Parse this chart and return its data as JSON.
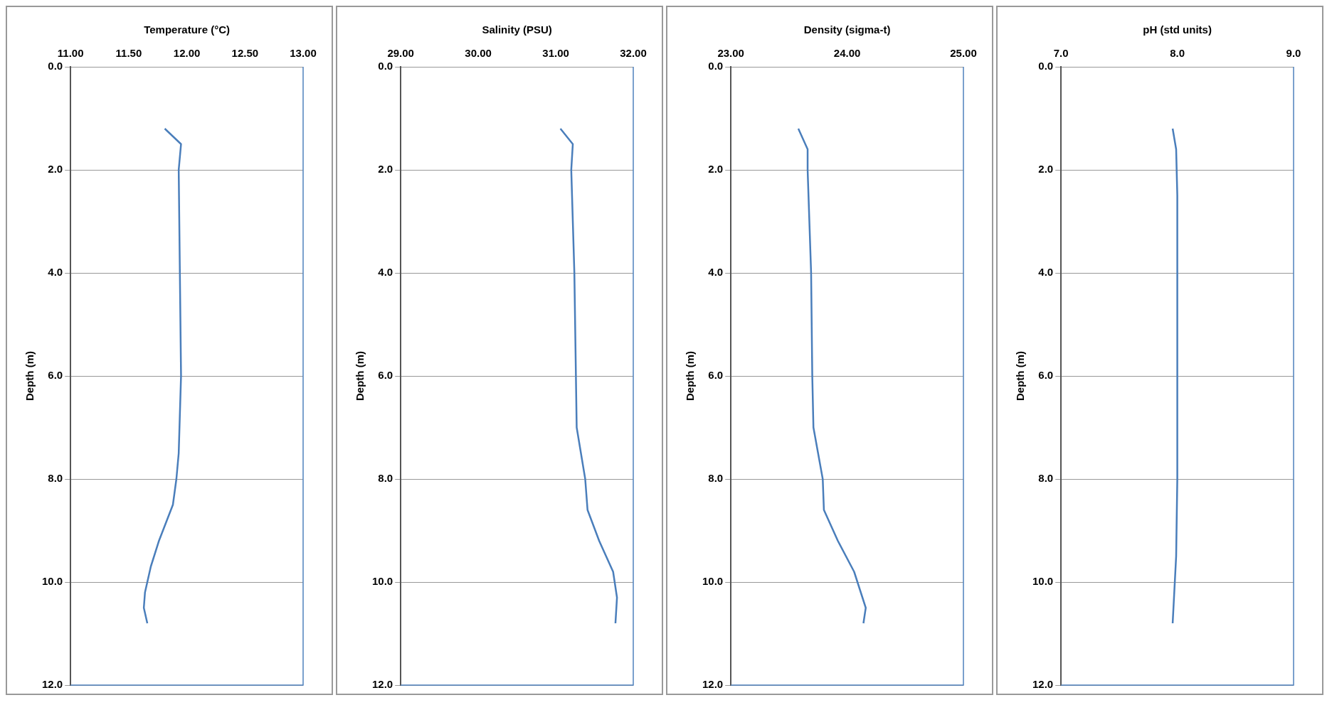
{
  "chart_data": [
    {
      "type": "line",
      "xlabel": "Temperature (°C)",
      "ylabel": "Depth (m)",
      "xlim": [
        11,
        13
      ],
      "ylim": [
        12,
        0
      ],
      "xticks": [
        {
          "value": 11,
          "label": "11.00"
        },
        {
          "value": 11.5,
          "label": "11.50"
        },
        {
          "value": 12,
          "label": "12.00"
        },
        {
          "value": 12.5,
          "label": "12.50"
        },
        {
          "value": 13,
          "label": "13.00"
        }
      ],
      "yticks": [
        {
          "value": 0,
          "label": "0.0"
        },
        {
          "value": 2,
          "label": "2.0"
        },
        {
          "value": 4,
          "label": "4.0"
        },
        {
          "value": 6,
          "label": "6.0"
        },
        {
          "value": 8,
          "label": "8.0"
        },
        {
          "value": 10,
          "label": "10.0"
        },
        {
          "value": 12,
          "label": "12.0"
        }
      ],
      "grid": "y",
      "marker": "none",
      "color": "#4a7ebb",
      "x": [
        11.81,
        11.95,
        11.93,
        11.94,
        11.95,
        11.93,
        11.91,
        11.88,
        11.76,
        11.69,
        11.64,
        11.63,
        11.66
      ],
      "values": [
        1.2,
        1.5,
        2,
        4,
        6,
        7.5,
        8,
        8.5,
        9.2,
        9.7,
        10.2,
        10.5,
        10.8
      ]
    },
    {
      "type": "line",
      "xlabel": "Salinity (PSU)",
      "ylabel": "Depth (m)",
      "xlim": [
        29,
        32
      ],
      "ylim": [
        12,
        0
      ],
      "xticks": [
        {
          "value": 29,
          "label": "29.00"
        },
        {
          "value": 30,
          "label": "30.00"
        },
        {
          "value": 31,
          "label": "31.00"
        },
        {
          "value": 32,
          "label": "32.00"
        }
      ],
      "yticks": [
        {
          "value": 0,
          "label": "0.0"
        },
        {
          "value": 2,
          "label": "2.0"
        },
        {
          "value": 4,
          "label": "4.0"
        },
        {
          "value": 6,
          "label": "6.0"
        },
        {
          "value": 8,
          "label": "8.0"
        },
        {
          "value": 10,
          "label": "10.0"
        },
        {
          "value": 12,
          "label": "12.0"
        }
      ],
      "grid": "y",
      "marker": "none",
      "color": "#4a7ebb",
      "x": [
        31.06,
        31.22,
        31.2,
        31.24,
        31.26,
        31.27,
        31.38,
        31.41,
        31.56,
        31.74,
        31.79,
        31.77
      ],
      "values": [
        1.2,
        1.5,
        2,
        4,
        6,
        7,
        8,
        8.6,
        9.2,
        9.8,
        10.3,
        10.8
      ]
    },
    {
      "type": "line",
      "xlabel": "Density (sigma-t)",
      "ylabel": "Depth (m)",
      "xlim": [
        23,
        25
      ],
      "ylim": [
        12,
        0
      ],
      "xticks": [
        {
          "value": 23,
          "label": "23.00"
        },
        {
          "value": 24,
          "label": "24.00"
        },
        {
          "value": 25,
          "label": "25.00"
        }
      ],
      "yticks": [
        {
          "value": 0,
          "label": "0.0"
        },
        {
          "value": 2,
          "label": "2.0"
        },
        {
          "value": 4,
          "label": "4.0"
        },
        {
          "value": 6,
          "label": "6.0"
        },
        {
          "value": 8,
          "label": "8.0"
        },
        {
          "value": 10,
          "label": "10.0"
        },
        {
          "value": 12,
          "label": "12.0"
        }
      ],
      "grid": "y",
      "marker": "none",
      "color": "#4a7ebb",
      "x": [
        23.58,
        23.66,
        23.66,
        23.69,
        23.7,
        23.71,
        23.79,
        23.8,
        23.92,
        24.06,
        24.16,
        24.14
      ],
      "values": [
        1.2,
        1.6,
        2,
        4,
        6,
        7,
        8,
        8.6,
        9.2,
        9.8,
        10.5,
        10.8
      ]
    },
    {
      "type": "line",
      "xlabel": "pH (std units)",
      "ylabel": "Depth (m)",
      "xlim": [
        7,
        9
      ],
      "ylim": [
        12,
        0
      ],
      "xticks": [
        {
          "value": 7,
          "label": "7.0"
        },
        {
          "value": 8,
          "label": "8.0"
        },
        {
          "value": 9,
          "label": "9.0"
        }
      ],
      "yticks": [
        {
          "value": 0,
          "label": "0.0"
        },
        {
          "value": 2,
          "label": "2.0"
        },
        {
          "value": 4,
          "label": "4.0"
        },
        {
          "value": 6,
          "label": "6.0"
        },
        {
          "value": 8,
          "label": "8.0"
        },
        {
          "value": 10,
          "label": "10.0"
        },
        {
          "value": 12,
          "label": "12.0"
        }
      ],
      "grid": "y",
      "marker": "none",
      "color": "#4a7ebb",
      "x": [
        7.96,
        7.99,
        8.0,
        8.0,
        7.99,
        7.96
      ],
      "values": [
        1.2,
        1.6,
        2.5,
        8,
        9.5,
        10.8
      ]
    }
  ]
}
